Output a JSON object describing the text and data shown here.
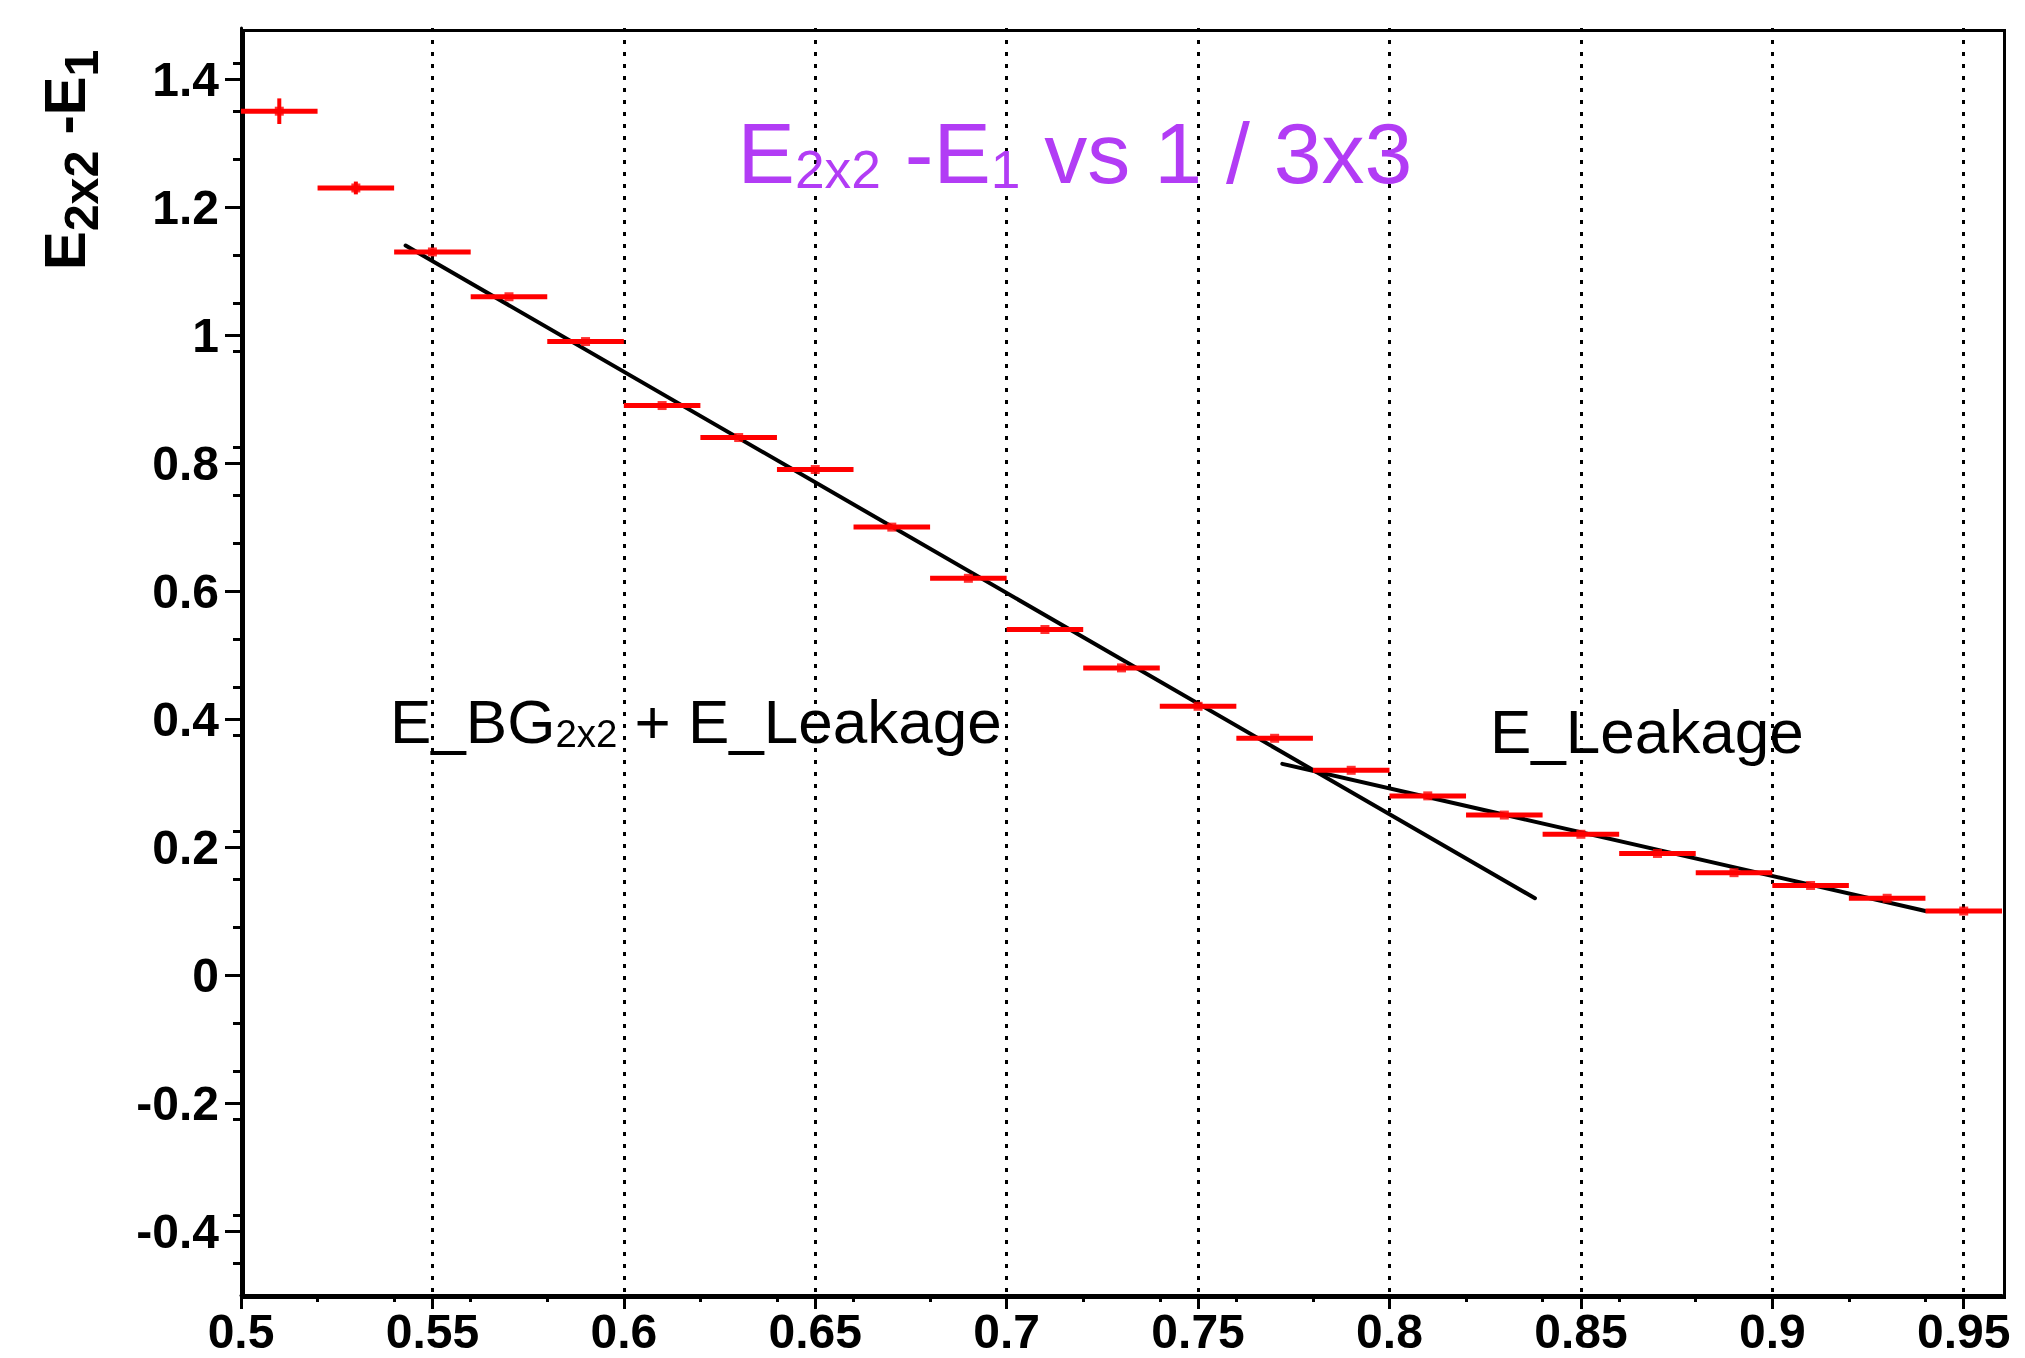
{
  "chart_data": {
    "type": "scatter",
    "title": "E$_{2x2}$ -E$_{1}$ vs 1 / 3x3",
    "ylabel": "E$_{2x2}$ -E$_{1}$",
    "annotations": [
      "E_BG$_{2x2}$ + E_Leakage",
      "E_Leakage"
    ],
    "x": [
      0.51,
      0.53,
      0.55,
      0.57,
      0.59,
      0.61,
      0.63,
      0.65,
      0.67,
      0.69,
      0.71,
      0.73,
      0.75,
      0.77,
      0.79,
      0.81,
      0.83,
      0.85,
      0.87,
      0.89,
      0.91,
      0.93,
      0.95
    ],
    "series": [
      {
        "color": "#ff0000",
        "marker": "square",
        "values": [
          1.35,
          1.23,
          1.13,
          1.06,
          0.99,
          0.89,
          0.84,
          0.79,
          0.7,
          0.62,
          0.54,
          0.48,
          0.42,
          0.37,
          0.32,
          0.28,
          0.25,
          0.22,
          0.19,
          0.16,
          0.14,
          0.12,
          0.1
        ],
        "errors": [
          0.02,
          0.01,
          0.005,
          null,
          null,
          null,
          null,
          null,
          null,
          null,
          null,
          null,
          null,
          null,
          null,
          null,
          null,
          null,
          null,
          null,
          null,
          null,
          null
        ],
        "xerrors": [
          0.01,
          0.01,
          0.01,
          0.01,
          0.01,
          0.01,
          0.01,
          0.01,
          0.01,
          0.01,
          0.01,
          0.01,
          0.01,
          0.01,
          0.01,
          0.01,
          0.01,
          0.01,
          0.01,
          0.01,
          0.01,
          0.01,
          0.01
        ]
      },
      {
        "type": "line",
        "color": "#000000",
        "marker": "none",
        "x": [
          0.543,
          0.838
        ],
        "values": [
          1.14,
          0.12
        ]
      },
      {
        "type": "line",
        "color": "#000000",
        "marker": "none",
        "x": [
          0.772,
          0.94
        ],
        "values": [
          0.33,
          0.1
        ]
      }
    ],
    "xlim": [
      0.5,
      0.96
    ],
    "xticks": [
      0.5,
      0.55,
      0.6,
      0.65,
      0.7,
      0.75,
      0.8,
      0.85,
      0.9,
      0.95
    ],
    "ylim": [
      -0.5,
      1.48
    ],
    "yticks": [
      -0.4,
      -0.2,
      0,
      0.2,
      0.4,
      0.6,
      0.8,
      1,
      1.2,
      1.4
    ],
    "grid": "x"
  }
}
